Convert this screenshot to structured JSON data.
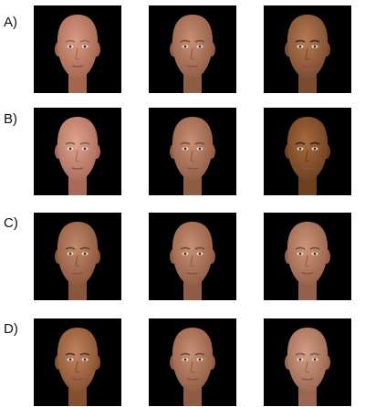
{
  "rows": [
    {
      "label": "A)",
      "faces": [
        {
          "skin": "#d99a86",
          "shade": "#a4654f",
          "brow": "#8a6a55",
          "hair": "none"
        },
        {
          "skin": "#c98f72",
          "shade": "#8e5c44",
          "brow": "#6b4a37",
          "hair": "none"
        },
        {
          "skin": "#b57a52",
          "shade": "#7a4b2e",
          "brow": "#3b2a1c",
          "hair": "none"
        }
      ]
    },
    {
      "label": "B)",
      "faces": [
        {
          "skin": "#e1a48f",
          "shade": "#a96b58",
          "brow": "#7a5a4a",
          "hair": "none"
        },
        {
          "skin": "#c98f72",
          "shade": "#8e5c44",
          "brow": "#6b4a37",
          "hair": "none"
        },
        {
          "skin": "#a86a3d",
          "shade": "#6c3f20",
          "brow": "#2f1f14",
          "hair": "none"
        }
      ]
    },
    {
      "label": "C)",
      "faces": [
        {
          "skin": "#c3876a",
          "shade": "#8a563d",
          "brow": "#5e412f",
          "hair": "none"
        },
        {
          "skin": "#c98f72",
          "shade": "#8e5c44",
          "brow": "#6b4a37",
          "hair": "none"
        },
        {
          "skin": "#cf9478",
          "shade": "#94604a",
          "brow": "#6d4f3f",
          "hair": "none"
        }
      ]
    },
    {
      "label": "D)",
      "faces": [
        {
          "skin": "#c1835e",
          "shade": "#84502f",
          "brow": "#4e3424",
          "hair": "none"
        },
        {
          "skin": "#c98f72",
          "shade": "#8e5c44",
          "brow": "#6b4a37",
          "hair": "none"
        },
        {
          "skin": "#d59d84",
          "shade": "#9a6650",
          "brow": "#7a5c4c",
          "hair": "none"
        }
      ]
    }
  ]
}
